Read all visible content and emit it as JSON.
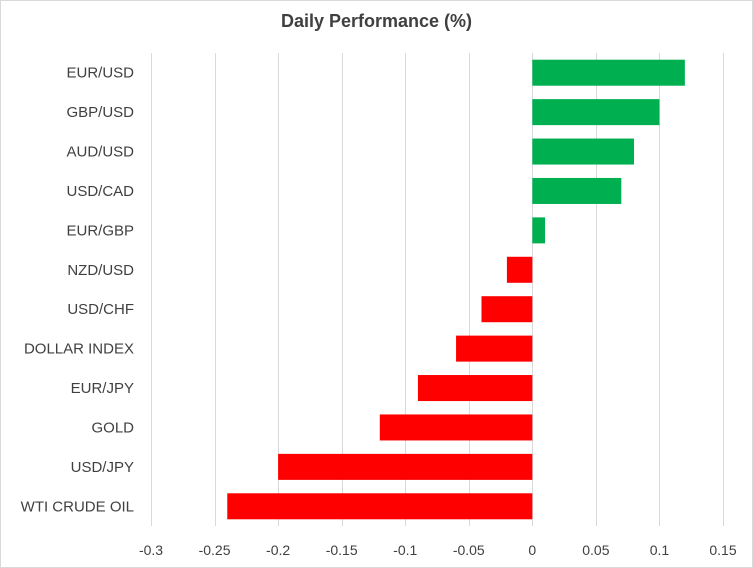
{
  "chart_data": {
    "type": "bar",
    "orientation": "horizontal",
    "title": "Daily Performance (%)",
    "xlabel": "",
    "ylabel": "",
    "categories": [
      "EUR/USD",
      "GBP/USD",
      "AUD/USD",
      "USD/CAD",
      "EUR/GBP",
      "NZD/USD",
      "USD/CHF",
      "DOLLAR INDEX",
      "EUR/JPY",
      "GOLD",
      "USD/JPY",
      "WTI CRUDE OIL"
    ],
    "values": [
      0.12,
      0.1,
      0.08,
      0.07,
      0.01,
      -0.02,
      -0.04,
      -0.06,
      -0.09,
      -0.12,
      -0.2,
      -0.24
    ],
    "xlim": [
      -0.3,
      0.15
    ],
    "x_ticks": [
      "-0.3",
      "-0.25",
      "-0.2",
      "-0.15",
      "-0.1",
      "-0.05",
      "0",
      "0.05",
      "0.1",
      "0.15"
    ],
    "x_tick_values": [
      -0.3,
      -0.25,
      -0.2,
      -0.15,
      -0.1,
      -0.05,
      0,
      0.05,
      0.1,
      0.15
    ],
    "grid": "vertical",
    "legend": "none",
    "colors": {
      "positive": "#00b050",
      "negative": "#ff0000",
      "grid": "#d9d9d9",
      "text": "#404040"
    }
  }
}
